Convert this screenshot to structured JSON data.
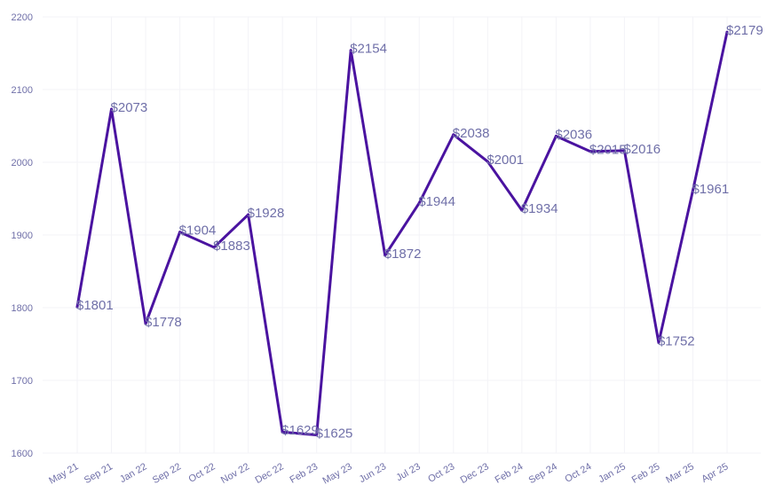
{
  "chart_data": {
    "type": "line",
    "title": "",
    "xlabel": "",
    "ylabel": "",
    "x": [
      "May 21",
      "Sep 21",
      "Jan 22",
      "Sep 22",
      "Oct 22",
      "Nov 22",
      "Dec 22",
      "Feb 23",
      "May 23",
      "Jun 23",
      "Jul 23",
      "Oct 23",
      "Dec 23",
      "Feb 24",
      "Sep 24",
      "Oct 24",
      "Jan 25",
      "Feb 25",
      "Mar 25",
      "Apr 25"
    ],
    "series": [
      {
        "values": [
          1801,
          2073,
          1778,
          1904,
          1883,
          1928,
          1629,
          1625,
          2154,
          1872,
          1944,
          2038,
          2001,
          1934,
          2036,
          2015,
          2016,
          1752,
          1961,
          2179
        ],
        "labels": [
          "$1801",
          "$2073",
          "$1778",
          "$1904",
          "$1883",
          "$1928",
          "$1629",
          "$1625",
          "$2154",
          "$1872",
          "$1944",
          "$2038",
          "$2001",
          "$1934",
          "$2036",
          "$2015",
          "$2016",
          "$1752",
          "$1961",
          "$2179"
        ]
      }
    ],
    "ylim": [
      1600,
      2200
    ],
    "yticks": [
      "1600",
      "1700",
      "1800",
      "1900",
      "2000",
      "2100",
      "2200"
    ],
    "grid": true,
    "legend": "none",
    "line_color": "#4a13a0",
    "label_color": "#6f6fa8"
  }
}
